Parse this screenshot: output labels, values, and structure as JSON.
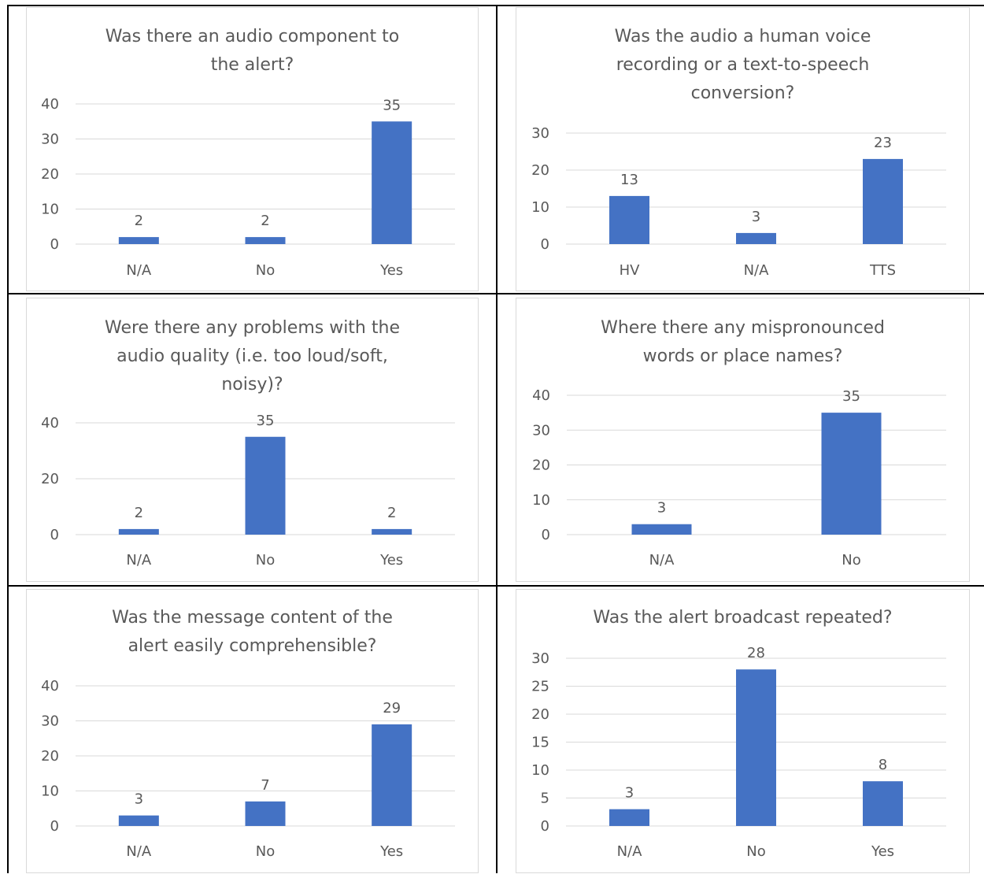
{
  "colors": {
    "bar": "#4472c4",
    "gridline": "#d9d9d9",
    "text": "#595959",
    "table_border": "#000000"
  },
  "chart_data": [
    {
      "type": "bar",
      "title": "Was there an audio component to\nthe alert?",
      "categories": [
        "N/A",
        "No",
        "Yes"
      ],
      "values": [
        2,
        2,
        35
      ],
      "ylim": [
        0,
        40
      ],
      "yticks": [
        0,
        10,
        20,
        30,
        40
      ],
      "grid": true,
      "legend": "none"
    },
    {
      "type": "bar",
      "title": "Was the audio a human voice\nrecording or a text-to-speech\nconversion?",
      "categories": [
        "HV",
        "N/A",
        "TTS"
      ],
      "values": [
        13,
        3,
        23
      ],
      "ylim": [
        0,
        30
      ],
      "yticks": [
        0,
        10,
        20,
        30
      ],
      "grid": true,
      "legend": "none"
    },
    {
      "type": "bar",
      "title": "Were there any problems with the\naudio quality (i.e. too loud/soft,\nnoisy)?",
      "categories": [
        "N/A",
        "No",
        "Yes"
      ],
      "values": [
        2,
        35,
        2
      ],
      "ylim": [
        0,
        40
      ],
      "yticks": [
        0,
        20,
        40
      ],
      "grid": true,
      "legend": "none"
    },
    {
      "type": "bar",
      "title": "Where there any mispronounced\nwords or place names?",
      "categories": [
        "N/A",
        "No"
      ],
      "values": [
        3,
        35
      ],
      "ylim": [
        0,
        40
      ],
      "yticks": [
        0,
        10,
        20,
        30,
        40
      ],
      "grid": true,
      "legend": "none"
    },
    {
      "type": "bar",
      "title": "Was the message content of the\nalert easily comprehensible?",
      "categories": [
        "N/A",
        "No",
        "Yes"
      ],
      "values": [
        3,
        7,
        29
      ],
      "ylim": [
        0,
        40
      ],
      "yticks": [
        0,
        10,
        20,
        30,
        40
      ],
      "grid": true,
      "legend": "none"
    },
    {
      "type": "bar",
      "title": "Was the alert broadcast repeated?",
      "categories": [
        "N/A",
        "No",
        "Yes"
      ],
      "values": [
        3,
        28,
        8
      ],
      "ylim": [
        0,
        30
      ],
      "yticks": [
        0,
        5,
        10,
        15,
        20,
        25,
        30
      ],
      "grid": true,
      "legend": "none"
    }
  ]
}
